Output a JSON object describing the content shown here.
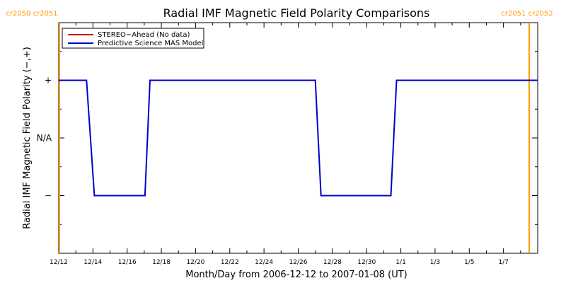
{
  "chart_data": {
    "type": "line",
    "title": "Radial IMF Magnetic Field Polarity Comparisons",
    "xlabel": "Month/Day from 2006-12-12 to 2007-01-08 (UT)",
    "ylabel": "Radial IMF Magnetic Field Polarity (−,+)",
    "xlim": [
      "2006-12-12",
      "2007-01-09"
    ],
    "ylim": [
      -2,
      2
    ],
    "x_ticks": [
      {
        "date": "2006-12-12",
        "label": "12/12"
      },
      {
        "date": "2006-12-14",
        "label": "12/14"
      },
      {
        "date": "2006-12-16",
        "label": "12/16"
      },
      {
        "date": "2006-12-18",
        "label": "12/18"
      },
      {
        "date": "2006-12-20",
        "label": "12/20"
      },
      {
        "date": "2006-12-22",
        "label": "12/22"
      },
      {
        "date": "2006-12-24",
        "label": "12/24"
      },
      {
        "date": "2006-12-26",
        "label": "12/26"
      },
      {
        "date": "2006-12-28",
        "label": "12/28"
      },
      {
        "date": "2006-12-30",
        "label": "12/30"
      },
      {
        "date": "2007-01-01",
        "label": "1/1"
      },
      {
        "date": "2007-01-03",
        "label": "1/3"
      },
      {
        "date": "2007-01-05",
        "label": "1/5"
      },
      {
        "date": "2007-01-07",
        "label": "1/7"
      }
    ],
    "y_ticks": [
      {
        "value": 1,
        "label": "+"
      },
      {
        "value": 0,
        "label": "N/A"
      },
      {
        "value": -1,
        "label": "−"
      }
    ],
    "markers": [
      {
        "date": "2006-12-12",
        "label": "cr2050 cr2051",
        "color": "#ff9900",
        "label_side": "left"
      },
      {
        "date": "2007-01-08T12:00",
        "label": "cr2051 cr2052",
        "color": "#ff9900",
        "label_side": "right"
      }
    ],
    "legend_position": "top-left",
    "series": [
      {
        "name": "STEREO−Ahead (No data)",
        "color": "#cc0000",
        "points": []
      },
      {
        "name": "Predictive Science MAS Model",
        "color": "#0000cc",
        "points": [
          {
            "x": "2006-12-12T00:00",
            "y": 1
          },
          {
            "x": "2006-12-13T15:00",
            "y": 1
          },
          {
            "x": "2006-12-14T02:00",
            "y": -1
          },
          {
            "x": "2006-12-17T01:00",
            "y": -1
          },
          {
            "x": "2006-12-17T08:00",
            "y": 1
          },
          {
            "x": "2006-12-27T00:00",
            "y": 1
          },
          {
            "x": "2006-12-27T08:00",
            "y": -1
          },
          {
            "x": "2006-12-31T10:00",
            "y": -1
          },
          {
            "x": "2006-12-31T18:00",
            "y": 1
          },
          {
            "x": "2007-01-09T00:00",
            "y": 1
          }
        ]
      }
    ]
  }
}
